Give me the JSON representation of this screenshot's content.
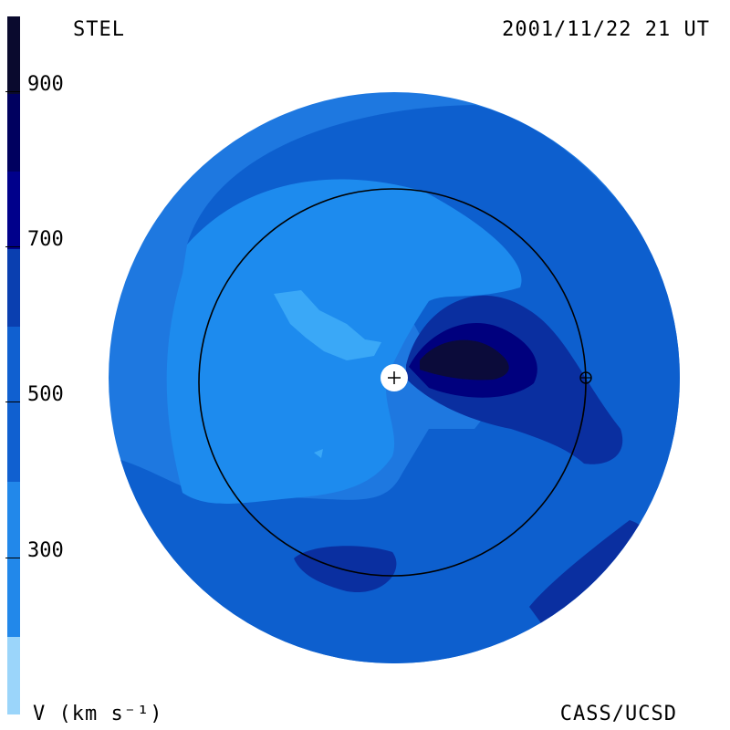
{
  "header": {
    "observatory": "STEL",
    "timestamp": "2001/11/22 21 UT"
  },
  "footer": {
    "units_label": "V (km s⁻¹)",
    "credit": "CASS/UCSD"
  },
  "colorbar": {
    "ticks": [
      "900",
      "700",
      "500",
      "300"
    ],
    "colors": [
      "#0a0a2e",
      "#00005f",
      "#00008b",
      "#0a3fb0",
      "#1060d0",
      "#2288ea",
      "#38aaf5",
      "#9bd5fa"
    ]
  },
  "map": {
    "colors": {
      "outer": "#1e78e0",
      "mid": "#0d5fce",
      "inner": "#1d8bee",
      "light": "#3aa8f7",
      "dark": "#0a2fa0",
      "darker": "#00007e",
      "darkest": "#0b0b3a"
    },
    "sun_marker": "sun-plus-icon",
    "earth_marker": "earth-circle-cross-icon"
  }
}
